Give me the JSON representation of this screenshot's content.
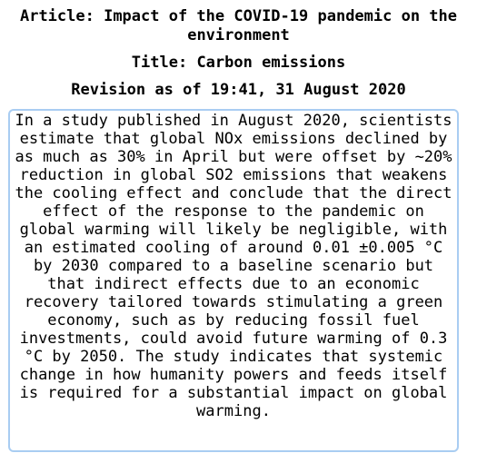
{
  "header": {
    "article": "Article: Impact of the COVID-19 pandemic on the environment",
    "title": "Title: Carbon emissions",
    "revision": "Revision as of 19:41, 31 August 2020"
  },
  "content": {
    "text": "In a study published in August 2020, scientists estimate that global NOx emissions declined by as much as 30% in April but were offset by ~20% reduction in global SO2 emissions that weakens the cooling effect and conclude that the direct effect of the response to the pandemic on global warming will likely be negligible, with an estimated cooling of around 0.01 ±0.005 °C by 2030 compared to a baseline scenario but that indirect effects due to an economic recovery tailored towards stimulating a green economy, such as by reducing fossil fuel investments, could avoid future warming of 0.3 °C by 2050. The study indicates that systemic change in how humanity powers and feeds itself is required for a substantial impact on global warming."
  },
  "colors": {
    "box_border": "#a9cdf2",
    "text": "#000000",
    "background": "#ffffff"
  }
}
